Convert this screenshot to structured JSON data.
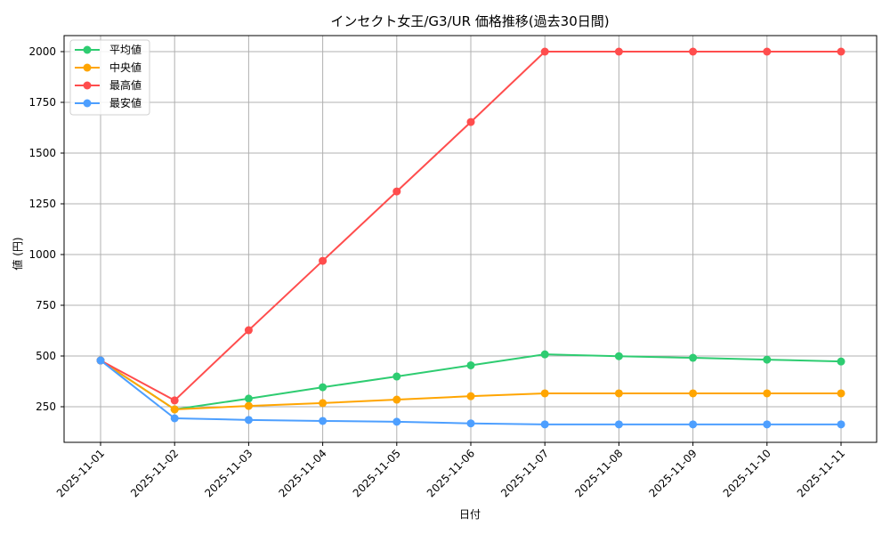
{
  "chart_data": {
    "type": "line",
    "title": "インセクト女王/G3/UR 価格推移(過去30日間)",
    "xlabel": "日付",
    "ylabel": "値 (円)",
    "categories": [
      "2025-11-01",
      "2025-11-02",
      "2025-11-03",
      "2025-11-04",
      "2025-11-05",
      "2025-11-06",
      "2025-11-07",
      "2025-11-08",
      "2025-11-09",
      "2025-11-10",
      "2025-11-11"
    ],
    "yticks": [
      250,
      500,
      750,
      1000,
      1250,
      1500,
      1750,
      2000
    ],
    "ylim": [
      70,
      2090
    ],
    "grid": true,
    "legend_position": "upper left",
    "series": [
      {
        "name": "平均値",
        "color": "#2ecc71",
        "values": [
          478,
          237,
          290,
          346,
          399,
          454,
          508,
          499,
          491,
          482,
          473
        ]
      },
      {
        "name": "中央値",
        "color": "#ffa500",
        "values": [
          478,
          237,
          254,
          268,
          285,
          302,
          316,
          316,
          316,
          316,
          316
        ]
      },
      {
        "name": "最高値",
        "color": "#ff4d4d",
        "values": [
          478,
          281,
          627,
          969,
          1311,
          1653,
          2000,
          2000,
          2000,
          2000,
          2000
        ]
      },
      {
        "name": "最安値",
        "color": "#4d9fff",
        "values": [
          478,
          193,
          185,
          180,
          176,
          168,
          163,
          163,
          163,
          163,
          163
        ]
      }
    ]
  }
}
